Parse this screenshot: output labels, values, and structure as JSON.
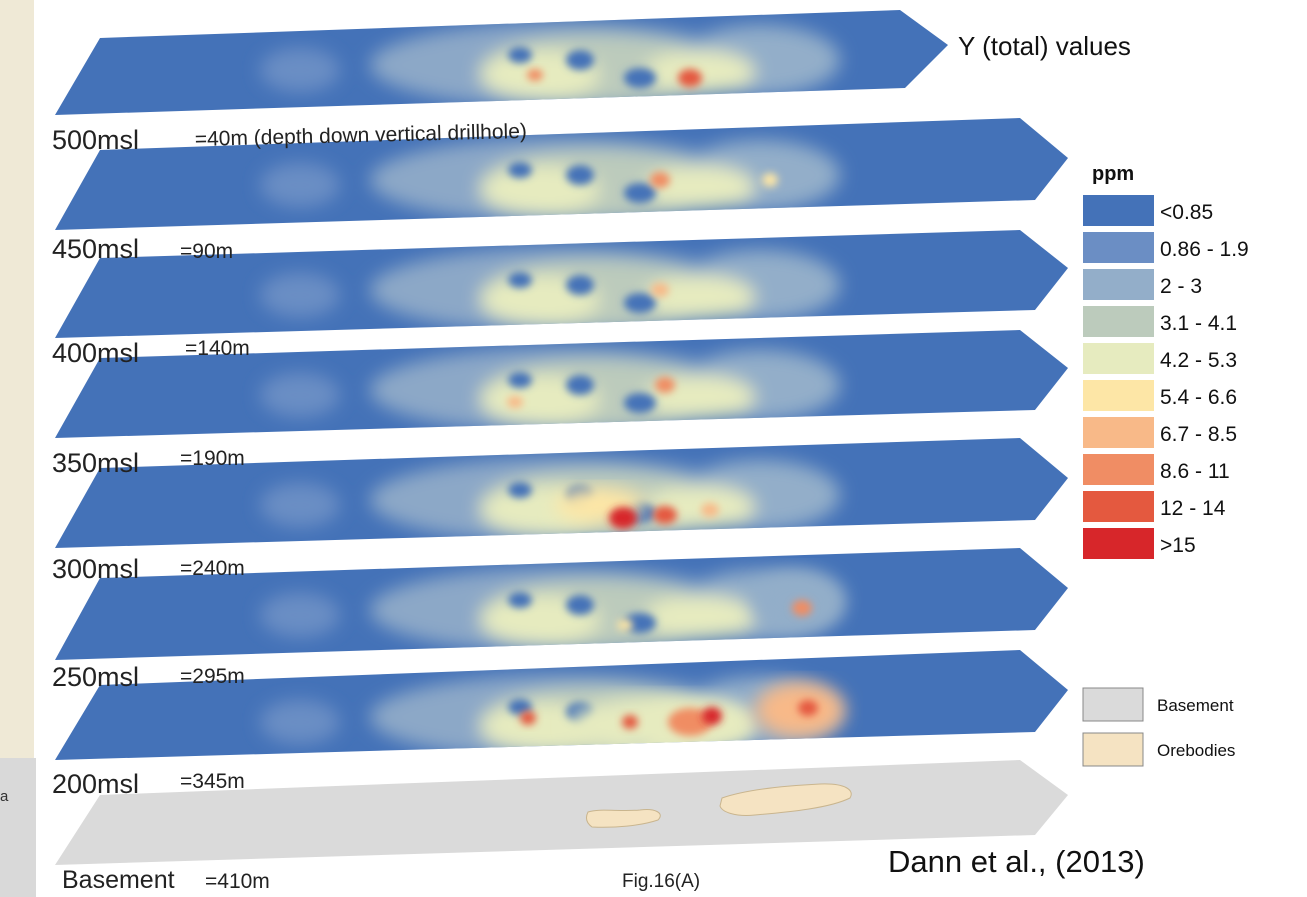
{
  "title": "Y (total) values",
  "legend": {
    "heading": "ppm",
    "classes": [
      {
        "label": "<0.85",
        "color": "#4472b8"
      },
      {
        "label": "0.86 - 1.9",
        "color": "#6b8ec4"
      },
      {
        "label": "2 - 3",
        "color": "#93aec9"
      },
      {
        "label": "3.1 - 4.1",
        "color": "#bccbbc"
      },
      {
        "label": "4.2 - 5.3",
        "color": "#e6ebbf"
      },
      {
        "label": "5.4 - 6.6",
        "color": "#fde6a6"
      },
      {
        "label": "6.7 - 8.5",
        "color": "#f8b988"
      },
      {
        "label": "8.6 - 11",
        "color": "#f08d64"
      },
      {
        "label": "12 - 14",
        "color": "#e4593f"
      },
      {
        "label": ">15",
        "color": "#d7262a"
      }
    ],
    "extra": [
      {
        "label": "Basement",
        "color": "#dadada"
      },
      {
        "label": "Orebodies",
        "color": "#f5e3c2"
      }
    ]
  },
  "slices": [
    {
      "level": "500msl",
      "depth": "=40m (depth down vertical drillhole)"
    },
    {
      "level": "450msl",
      "depth": "=90m"
    },
    {
      "level": "400msl",
      "depth": "=140m"
    },
    {
      "level": "350msl",
      "depth": "=190m"
    },
    {
      "level": "300msl",
      "depth": "=240m"
    },
    {
      "level": "250msl",
      "depth": "=295m"
    },
    {
      "level": "200msl",
      "depth": "=345m"
    },
    {
      "level": "Basement",
      "depth": "=410m"
    }
  ],
  "figure_label": "Fig.16(A)",
  "citation": "Dann et al., (2013)",
  "left_fragment": "a"
}
